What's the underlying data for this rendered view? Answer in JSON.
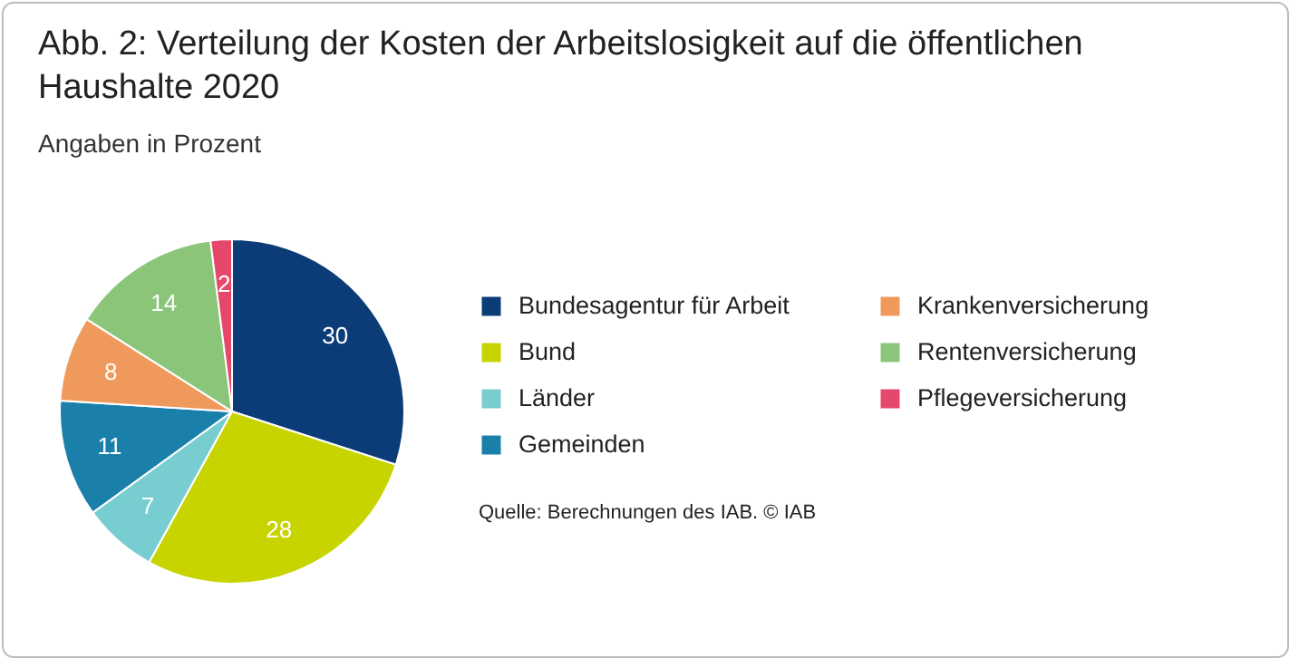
{
  "chart_data": {
    "type": "pie",
    "title": "Abb. 2: Verteilung der Kosten der Arbeitslosigkeit auf die öffentlichen Haushalte 2020",
    "subtitle": "Angaben in Prozent",
    "categories": [
      "Bundesagentur für Arbeit",
      "Bund",
      "Länder",
      "Gemeinden",
      "Krankenversicherung",
      "Rentenversicherung",
      "Pflegeversicherung"
    ],
    "values": [
      30,
      28,
      7,
      11,
      8,
      14,
      2
    ],
    "colors": [
      "#0c3c78",
      "#c8d400",
      "#78cdd0",
      "#1a80aa",
      "#ef9a5c",
      "#8ac57a",
      "#e5486b"
    ],
    "data_labels": true,
    "legend": "right",
    "annotations": [
      "Quelle: Berechnungen des IAB. © IAB"
    ]
  }
}
